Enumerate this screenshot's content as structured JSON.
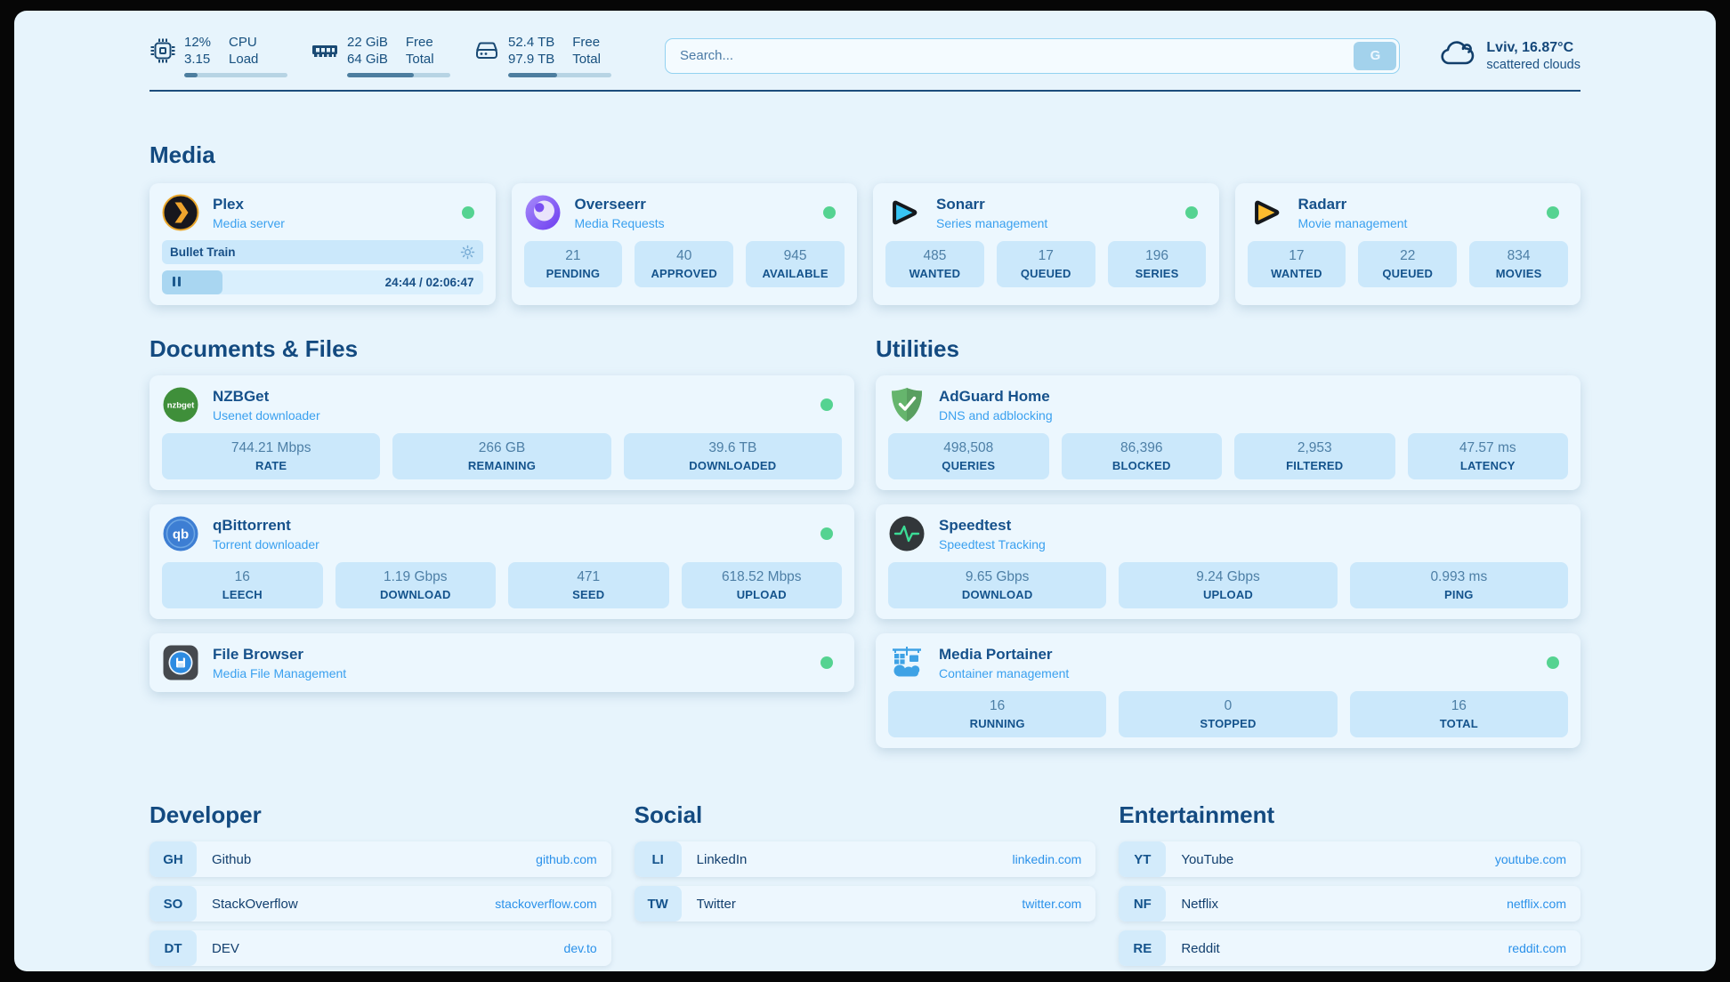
{
  "topbar": {
    "widgets": [
      {
        "name": "cpu",
        "value_top": "12%",
        "value_bottom": "3.15",
        "label_top": "CPU",
        "label_bottom": "Load",
        "progress_pct": 13
      },
      {
        "name": "memory",
        "value_top": "22 GiB",
        "value_bottom": "64 GiB",
        "label_top": "Free",
        "label_bottom": "Total",
        "progress_pct": 65
      },
      {
        "name": "storage",
        "value_top": "52.4 TB",
        "value_bottom": "97.9 TB",
        "label_top": "Free",
        "label_bottom": "Total",
        "progress_pct": 47
      }
    ],
    "search": {
      "placeholder": "Search...",
      "button_label": "G"
    },
    "weather": {
      "location_temp": "Lviv, 16.87°C",
      "condition": "scattered clouds"
    }
  },
  "app_sections": [
    {
      "title": "Media",
      "cards": [
        {
          "icon": "plex",
          "title": "Plex",
          "subtitle": "Media server",
          "online": true,
          "player": {
            "title": "Bullet Train",
            "time_display": "24:44 / 02:06:47",
            "progress_pct": 19,
            "state": "paused"
          }
        },
        {
          "icon": "overseerr",
          "title": "Overseerr",
          "subtitle": "Media Requests",
          "online": true,
          "stats": [
            {
              "value": "21",
              "label": "PENDING"
            },
            {
              "value": "40",
              "label": "APPROVED"
            },
            {
              "value": "945",
              "label": "AVAILABLE"
            }
          ]
        },
        {
          "icon": "sonarr",
          "title": "Sonarr",
          "subtitle": "Series management",
          "online": true,
          "stats": [
            {
              "value": "485",
              "label": "WANTED"
            },
            {
              "value": "17",
              "label": "QUEUED"
            },
            {
              "value": "196",
              "label": "SERIES"
            }
          ]
        },
        {
          "icon": "radarr",
          "title": "Radarr",
          "subtitle": "Movie management",
          "online": true,
          "stats": [
            {
              "value": "17",
              "label": "WANTED"
            },
            {
              "value": "22",
              "label": "QUEUED"
            },
            {
              "value": "834",
              "label": "MOVIES"
            }
          ]
        }
      ]
    },
    {
      "title": "Documents & Files",
      "cards": [
        {
          "icon": "nzbget",
          "title": "NZBGet",
          "subtitle": "Usenet downloader",
          "online": true,
          "stats": [
            {
              "value": "744.21 Mbps",
              "label": "RATE"
            },
            {
              "value": "266 GB",
              "label": "REMAINING"
            },
            {
              "value": "39.6 TB",
              "label": "DOWNLOADED"
            }
          ]
        },
        {
          "icon": "qbittorrent",
          "title": "qBittorrent",
          "subtitle": "Torrent downloader",
          "online": true,
          "stats": [
            {
              "value": "16",
              "label": "LEECH"
            },
            {
              "value": "1.19 Gbps",
              "label": "DOWNLOAD"
            },
            {
              "value": "471",
              "label": "SEED"
            },
            {
              "value": "618.52 Mbps",
              "label": "UPLOAD"
            }
          ]
        },
        {
          "icon": "filebrowser",
          "title": "File Browser",
          "subtitle": "Media File Management",
          "online": true
        }
      ]
    },
    {
      "title": "Utilities",
      "cards": [
        {
          "icon": "adguard",
          "title": "AdGuard Home",
          "subtitle": "DNS and adblocking",
          "online": false,
          "stats": [
            {
              "value": "498,508",
              "label": "QUERIES"
            },
            {
              "value": "86,396",
              "label": "BLOCKED"
            },
            {
              "value": "2,953",
              "label": "FILTERED"
            },
            {
              "value": "47.57 ms",
              "label": "LATENCY"
            }
          ]
        },
        {
          "icon": "speedtest",
          "title": "Speedtest",
          "subtitle": "Speedtest Tracking",
          "online": false,
          "stats": [
            {
              "value": "9.65 Gbps",
              "label": "DOWNLOAD"
            },
            {
              "value": "9.24 Gbps",
              "label": "UPLOAD"
            },
            {
              "value": "0.993 ms",
              "label": "PING"
            }
          ]
        },
        {
          "icon": "portainer",
          "title": "Media Portainer",
          "subtitle": "Container management",
          "online": true,
          "stats": [
            {
              "value": "16",
              "label": "RUNNING"
            },
            {
              "value": "0",
              "label": "STOPPED"
            },
            {
              "value": "16",
              "label": "TOTAL"
            }
          ]
        }
      ]
    }
  ],
  "bookmark_sections": [
    {
      "title": "Developer",
      "links": [
        {
          "abbr": "GH",
          "name": "Github",
          "url": "github.com"
        },
        {
          "abbr": "SO",
          "name": "StackOverflow",
          "url": "stackoverflow.com"
        },
        {
          "abbr": "DT",
          "name": "DEV",
          "url": "dev.to"
        }
      ]
    },
    {
      "title": "Social",
      "links": [
        {
          "abbr": "LI",
          "name": "LinkedIn",
          "url": "linkedin.com"
        },
        {
          "abbr": "TW",
          "name": "Twitter",
          "url": "twitter.com"
        }
      ]
    },
    {
      "title": "Entertainment",
      "links": [
        {
          "abbr": "YT",
          "name": "YouTube",
          "url": "youtube.com"
        },
        {
          "abbr": "NF",
          "name": "Netflix",
          "url": "netflix.com"
        },
        {
          "abbr": "RE",
          "name": "Reddit",
          "url": "reddit.com"
        }
      ]
    }
  ],
  "colors": {
    "status_online": "#55d391",
    "accent_blue": "#2a91ea",
    "navy": "#174d85"
  }
}
